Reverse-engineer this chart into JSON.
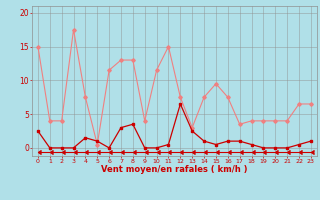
{
  "x": [
    0,
    1,
    2,
    3,
    4,
    5,
    6,
    7,
    8,
    9,
    10,
    11,
    12,
    13,
    14,
    15,
    16,
    17,
    18,
    19,
    20,
    21,
    22,
    23
  ],
  "rafales": [
    15,
    4,
    4,
    17.5,
    7.5,
    0.5,
    11.5,
    13,
    13,
    4,
    11.5,
    15,
    7.5,
    3,
    7.5,
    9.5,
    7.5,
    3.5,
    4,
    4,
    4,
    4,
    6.5,
    6.5
  ],
  "vent_moyen": [
    2.5,
    0,
    0,
    0,
    1.5,
    1,
    0,
    3,
    3.5,
    0,
    0,
    0.5,
    6.5,
    2.5,
    1,
    0.5,
    1,
    1,
    0.5,
    0,
    0,
    0,
    0.5,
    1
  ],
  "bottom_line": [
    -0.6,
    -0.6,
    -0.6,
    -0.6,
    -0.6,
    -0.6,
    -0.6,
    -0.6,
    -0.6,
    -0.6,
    -0.6,
    -0.6,
    -0.6,
    -0.6,
    -0.6,
    -0.6,
    -0.6,
    -0.6,
    -0.6,
    -0.6,
    -0.6,
    -0.6,
    -0.6,
    -0.6
  ],
  "rafales_color": "#f08080",
  "vent_moyen_color": "#cc0000",
  "bottom_color": "#cc0000",
  "bg_color": "#b0e0e8",
  "grid_color": "#909090",
  "axis_label_color": "#cc0000",
  "xlabel": "Vent moyen/en rafales ( km/h )",
  "ylim": [
    -1.2,
    21
  ],
  "xlim": [
    -0.5,
    23.5
  ],
  "yticks": [
    0,
    5,
    10,
    15,
    20
  ],
  "xticks": [
    0,
    1,
    2,
    3,
    4,
    5,
    6,
    7,
    8,
    9,
    10,
    11,
    12,
    13,
    14,
    15,
    16,
    17,
    18,
    19,
    20,
    21,
    22,
    23
  ]
}
